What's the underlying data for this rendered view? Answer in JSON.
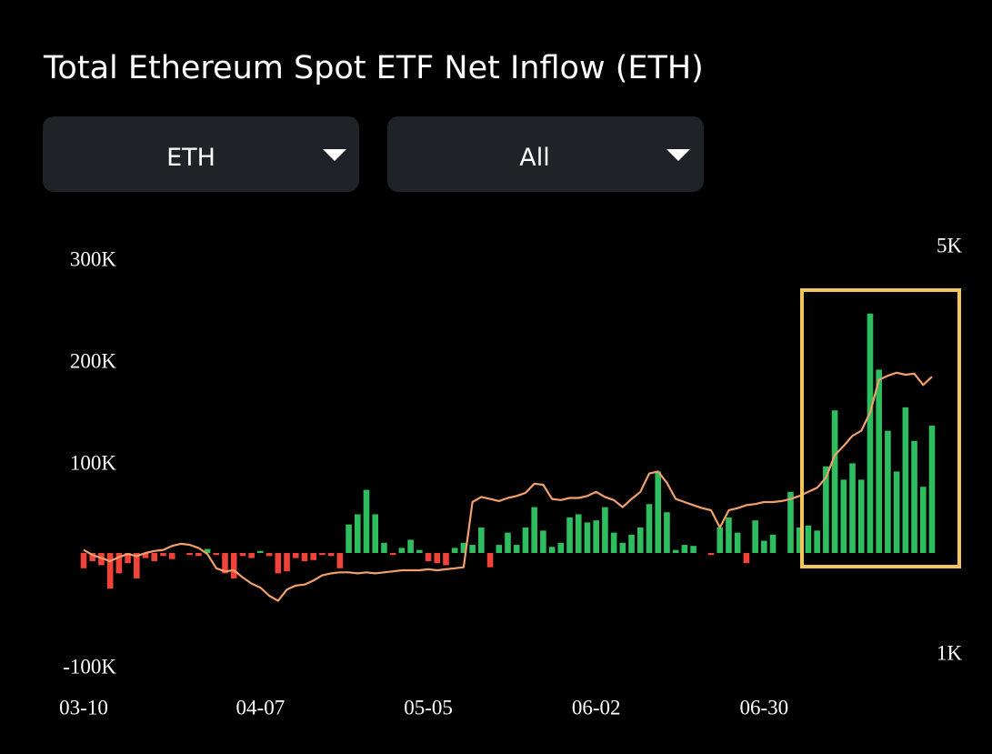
{
  "header": {
    "title": "Total Ethereum Spot ETF Net Inflow (ETH)"
  },
  "controls": [
    {
      "label": "ETH"
    },
    {
      "label": "All"
    }
  ],
  "chart_data": {
    "type": "bar",
    "categories": [
      "03-10",
      null,
      null,
      null,
      null,
      null,
      null,
      null,
      null,
      null,
      null,
      null,
      null,
      null,
      null,
      null,
      null,
      null,
      null,
      null,
      "04-07",
      null,
      null,
      null,
      null,
      null,
      null,
      null,
      null,
      null,
      null,
      null,
      null,
      null,
      null,
      null,
      null,
      null,
      null,
      "05-05",
      null,
      null,
      null,
      null,
      null,
      null,
      null,
      null,
      null,
      null,
      null,
      null,
      null,
      null,
      null,
      null,
      null,
      null,
      "06-02",
      null,
      null,
      null,
      null,
      null,
      null,
      null,
      null,
      null,
      null,
      null,
      null,
      null,
      null,
      null,
      null,
      null,
      null,
      "06-30",
      null,
      null,
      null,
      null,
      null,
      null,
      null,
      null,
      null,
      null,
      null,
      null,
      null,
      null,
      null,
      null,
      null,
      null,
      null
    ],
    "series": [
      {
        "type": "bar",
        "color": "#2ebd5f",
        "negative_color": "#f0443a",
        "values": [
          -15000,
          -8000,
          -12000,
          -35000,
          -20000,
          -10000,
          -25000,
          -5000,
          -8000,
          -3000,
          -6000,
          0,
          -2000,
          -3000,
          4000,
          -2000,
          -20000,
          -25000,
          -3000,
          -5000,
          2000,
          -3000,
          -20000,
          -18000,
          -5000,
          -8000,
          -7000,
          -2000,
          -3000,
          -15000,
          28000,
          38000,
          62000,
          38000,
          10000,
          -2000,
          5000,
          13000,
          3000,
          -8000,
          -10000,
          -12000,
          5000,
          10000,
          8000,
          25000,
          -14000,
          8000,
          20000,
          8000,
          25000,
          45000,
          22000,
          6000,
          10000,
          35000,
          38000,
          30000,
          32000,
          45000,
          20000,
          10000,
          18000,
          25000,
          48000,
          80000,
          40000,
          3000,
          8000,
          7000,
          0,
          -2000,
          25000,
          35000,
          20000,
          -10000,
          32000,
          12000,
          18000,
          0,
          60000,
          25000,
          27000,
          22000,
          85000,
          140000,
          72000,
          88000,
          72000,
          235000,
          180000,
          120000,
          80000,
          143000,
          110000,
          65000,
          125000
        ]
      },
      {
        "type": "line",
        "axis": "y2",
        "color": "#f2a06b",
        "values": [
          2030,
          1980,
          1950,
          1920,
          1960,
          1990,
          1970,
          2000,
          2020,
          2030,
          2070,
          2090,
          2080,
          2050,
          1990,
          1850,
          1820,
          1830,
          1760,
          1700,
          1660,
          1580,
          1530,
          1640,
          1680,
          1690,
          1730,
          1780,
          1800,
          1810,
          1810,
          1800,
          1810,
          1800,
          1810,
          1820,
          1830,
          1830,
          1830,
          1840,
          1830,
          1840,
          1850,
          1860,
          2500,
          2550,
          2530,
          2510,
          2540,
          2560,
          2590,
          2680,
          2670,
          2530,
          2520,
          2540,
          2540,
          2560,
          2600,
          2550,
          2520,
          2450,
          2530,
          2600,
          2780,
          2800,
          2690,
          2530,
          2500,
          2470,
          2440,
          2420,
          2250,
          2420,
          2440,
          2470,
          2480,
          2500,
          2500,
          2510,
          2530,
          2560,
          2600,
          2640,
          2740,
          2960,
          3050,
          3150,
          3200,
          3380,
          3700,
          3740,
          3770,
          3750,
          3760,
          3650,
          3730
        ]
      }
    ],
    "ylim": [
      -100000,
      300000
    ],
    "yticks": [
      {
        "value": -100000,
        "label": "-100K"
      },
      {
        "value": 100000,
        "label": "100K"
      },
      {
        "value": 200000,
        "label": "200K"
      },
      {
        "value": 300000,
        "label": "300K"
      }
    ],
    "y2lim": [
      1000,
      5000
    ],
    "y2ticks": [
      {
        "value": 1000,
        "label": "1K"
      },
      {
        "value": 5000,
        "label": "5K"
      }
    ]
  }
}
